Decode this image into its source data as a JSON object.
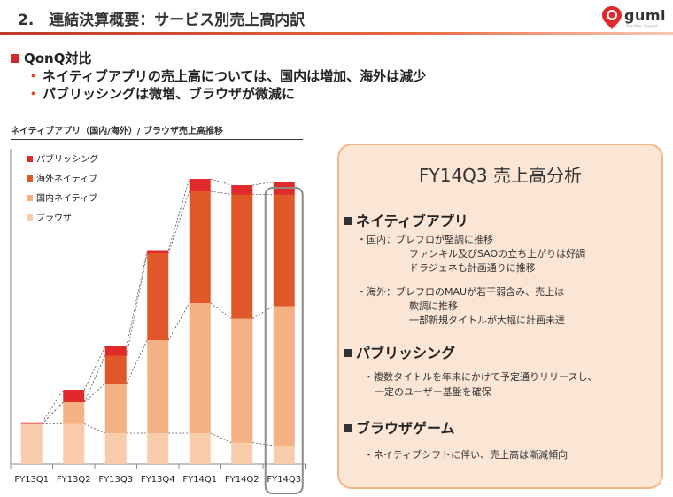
{
  "header": {
    "title": "2.　連結決算概要：サービス別売上高内訳"
  },
  "logo": {
    "word": "gumi",
    "tagline": "One Map, Beyond."
  },
  "summary": {
    "heading": "QonQ対比",
    "points": [
      "ネイティブアプリの売上高については、国内は増加、海外は減少",
      "パブリッシングは微増、ブラウザが微減に"
    ]
  },
  "chart_title": "ネイティブアプリ（国内/海外）/ ブラウザ売上高推移",
  "chart_data": {
    "type": "bar",
    "stacked": true,
    "title": "ネイティブアプリ（国内/海外）/ ブラウザ売上高推移",
    "categories": [
      "FY13Q1",
      "FY13Q2",
      "FY13Q3",
      "FY13Q4",
      "FY14Q1",
      "FY14Q2",
      "FY14Q3"
    ],
    "series": [
      {
        "name": "ブラウザ",
        "color": "#f8cbaa",
        "values": [
          13,
          13,
          10,
          10,
          10,
          7,
          6
        ]
      },
      {
        "name": "国内ネイティブ",
        "color": "#f4b183",
        "values": [
          0,
          7,
          16,
          30,
          42,
          40,
          45
        ]
      },
      {
        "name": "海外ネイティブ",
        "color": "#e0582a",
        "values": [
          0,
          0,
          9,
          28,
          36,
          40,
          36
        ]
      },
      {
        "name": "パブリッシング",
        "color": "#e0292a",
        "values": [
          0.5,
          4,
          3,
          1,
          4,
          3,
          4
        ]
      }
    ],
    "legend_order": [
      "パブリッシング",
      "海外ネイティブ",
      "国内ネイティブ",
      "ブラウザ"
    ],
    "legend_position": "top-left",
    "highlight_category": "FY14Q3",
    "ylim": [
      0,
      100
    ],
    "grid": false
  },
  "panel": {
    "title": "FY14Q3 売上高分析",
    "sections": [
      {
        "heading": "ネイティブアプリ",
        "lines": [
          "・国内：ブレフロが堅調に推移",
          "ファンキル及びSAOの立ち上がりは好調",
          "ドラジェネも計画通りに推移",
          "・海外：ブレフロのMAUが若干弱含み、売上は",
          "軟調に推移",
          "一部新規タイトルが大幅に計画未達"
        ]
      },
      {
        "heading": "パブリッシング",
        "lines": [
          "・複数タイトルを年末にかけて予定通りリリースし、",
          "一定のユーザー基盤を確保"
        ]
      },
      {
        "heading": "ブラウザゲーム",
        "lines": [
          "・ネイティブシフトに伴い、売上高は漸減傾向"
        ]
      }
    ]
  }
}
